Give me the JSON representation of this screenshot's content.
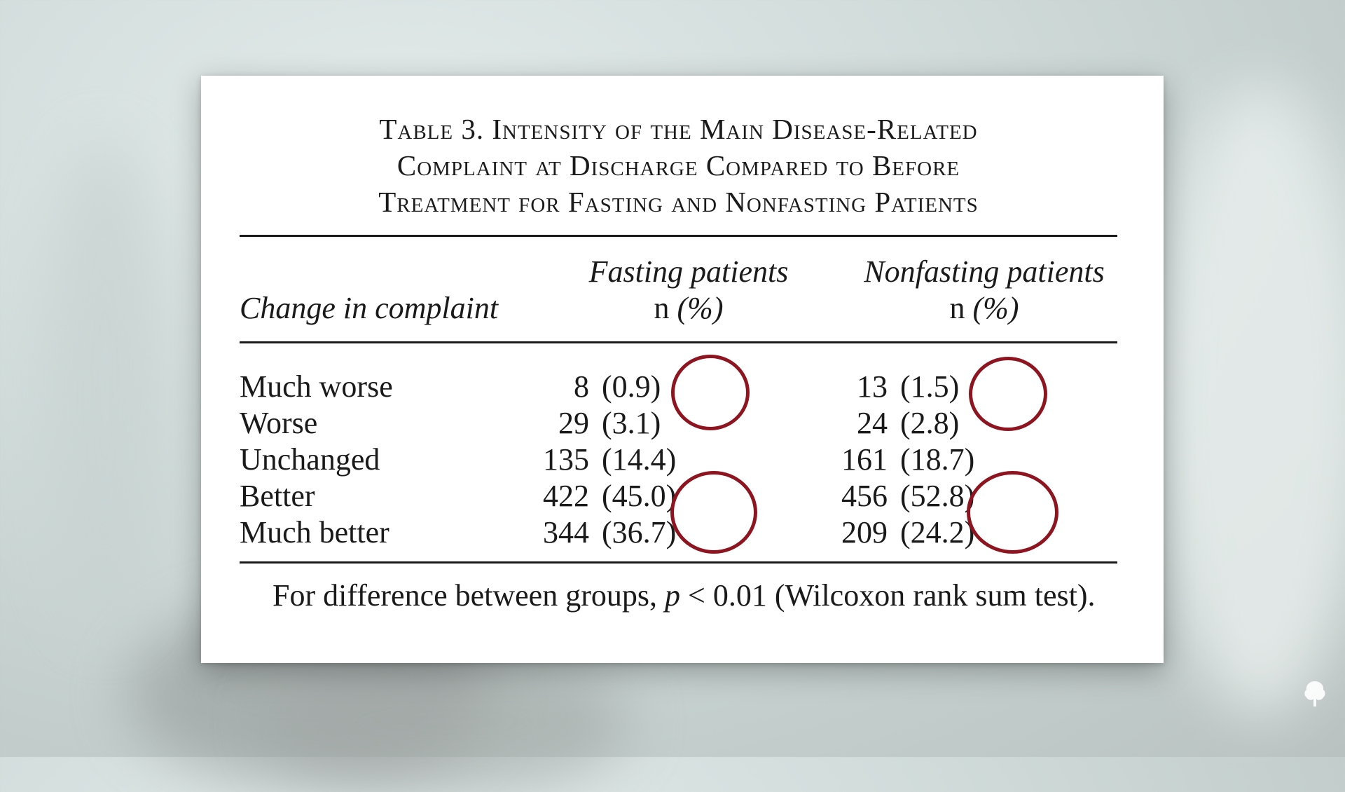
{
  "table": {
    "title_line1": "Table 3. Intensity of the Main Disease-Related",
    "title_line2": "Complaint at Discharge Compared to Before",
    "title_line3": "Treatment for Fasting and Nonfasting Patients",
    "headers": {
      "change": "Change in complaint",
      "fasting": "Fasting patients",
      "nonfasting": "Nonfasting patients",
      "n_label": "n",
      "pct_label": "(%)"
    },
    "rows": [
      {
        "label": "Much worse",
        "fasting_n": "8",
        "fasting_pct": "(0.9)",
        "nonfasting_n": "13",
        "nonfasting_pct": "(1.5)"
      },
      {
        "label": "Worse",
        "fasting_n": "29",
        "fasting_pct": "(3.1)",
        "nonfasting_n": "24",
        "nonfasting_pct": "(2.8)"
      },
      {
        "label": "Unchanged",
        "fasting_n": "135",
        "fasting_pct": "(14.4)",
        "nonfasting_n": "161",
        "nonfasting_pct": "(18.7)"
      },
      {
        "label": "Better",
        "fasting_n": "422",
        "fasting_pct": "(45.0)",
        "nonfasting_n": "456",
        "nonfasting_pct": "(52.8)"
      },
      {
        "label": "Much better",
        "fasting_n": "344",
        "fasting_pct": "(36.7)",
        "nonfasting_n": "209",
        "nonfasting_pct": "(24.2)"
      }
    ],
    "footnote_pre": "For difference between groups,",
    "footnote_p": "p",
    "footnote_post": "< 0.01 (Wilcoxon rank sum test)."
  },
  "annotation_color": "#8e1520",
  "brand_icon": "tree-logo-icon"
}
